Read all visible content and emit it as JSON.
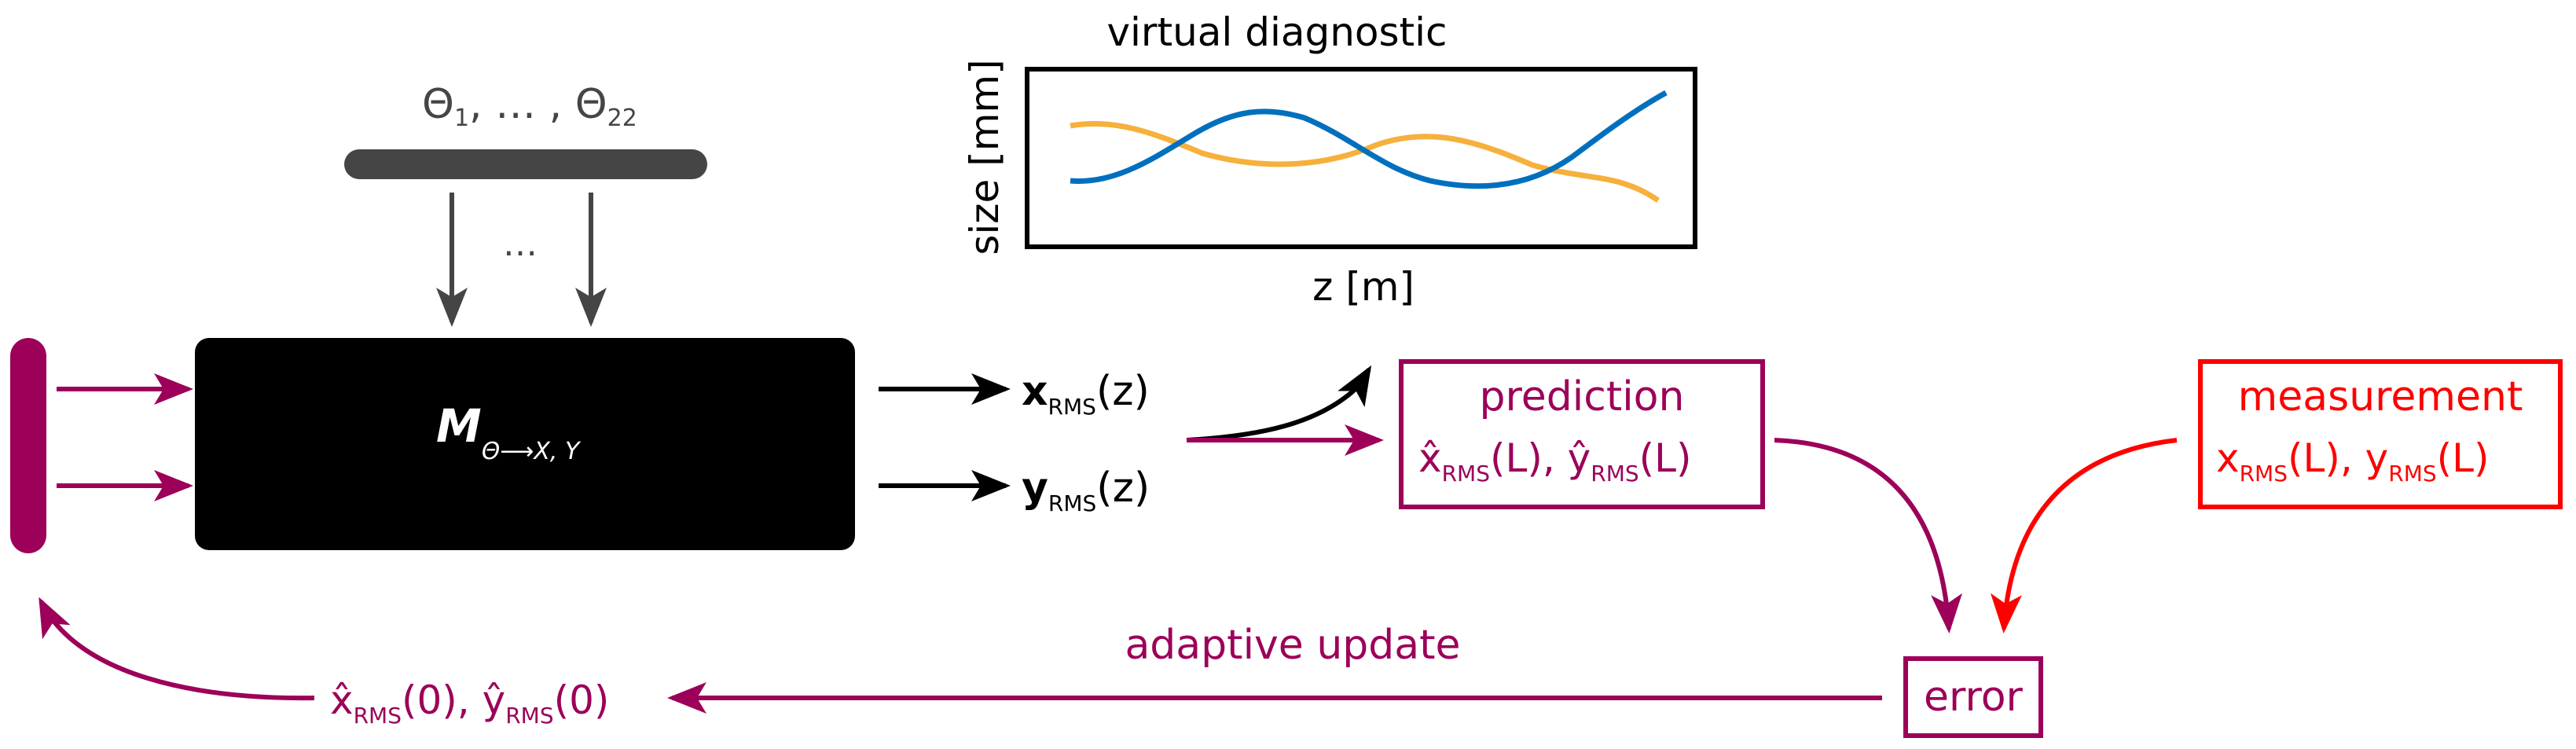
{
  "colors": {
    "purple": "#9c0059",
    "red": "#ff0000",
    "black": "#000000",
    "gray": "#454545",
    "orange": "#f6b03c",
    "blue": "#0070be"
  },
  "params": {
    "theta": "Θ",
    "sub1": "1",
    "sep": ", … , ",
    "sub22": "22",
    "dots": "…"
  },
  "model": {
    "symbol": "M",
    "subscript": "Θ⟶X, Y"
  },
  "outputs": {
    "x": {
      "sym": "x",
      "sub": "RMS",
      "arg": "(z)"
    },
    "y": {
      "sym": "y",
      "sub": "RMS",
      "arg": "(z)"
    }
  },
  "diagnostic": {
    "title": "virtual diagnostic",
    "ylabel": "size [mm]",
    "xlabel": "z [m]",
    "curves": [
      {
        "color": "orange"
      },
      {
        "color": "blue"
      }
    ]
  },
  "prediction": {
    "title": "prediction",
    "x": {
      "sym": "x̂",
      "sub": "RMS",
      "arg": "(L),"
    },
    "y": {
      "sym": "ŷ",
      "sub": "RMS",
      "arg": "(L)"
    }
  },
  "measurement": {
    "title": "measurement",
    "x": {
      "sym": "x",
      "sub": "RMS",
      "arg": "(L),"
    },
    "y": {
      "sym": "y",
      "sub": "RMS",
      "arg": "(L)"
    }
  },
  "error": {
    "label": "error"
  },
  "feedback": {
    "label": "adaptive update",
    "x": {
      "sym": "x̂",
      "sub": "RMS",
      "arg": "(0),"
    },
    "y": {
      "sym": "ŷ",
      "sub": "RMS",
      "arg": "(0)"
    }
  }
}
